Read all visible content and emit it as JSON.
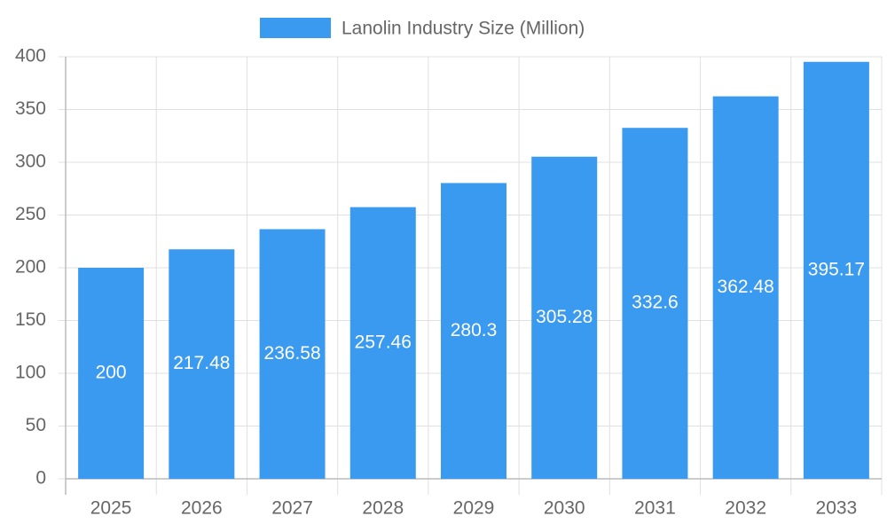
{
  "chart_data": {
    "type": "bar",
    "categories": [
      "2025",
      "2026",
      "2027",
      "2028",
      "2029",
      "2030",
      "2031",
      "2032",
      "2033"
    ],
    "series": [
      {
        "name": "Lanolin Industry Size (Million)",
        "color": "#3a9af0",
        "values": [
          200,
          217.48,
          236.58,
          257.46,
          280.3,
          305.28,
          332.6,
          362.48,
          395.17
        ]
      }
    ],
    "ylim": [
      0,
      400
    ],
    "yticks": [
      0,
      50,
      100,
      150,
      200,
      250,
      300,
      350,
      400
    ],
    "grid": true,
    "legend": "top"
  }
}
